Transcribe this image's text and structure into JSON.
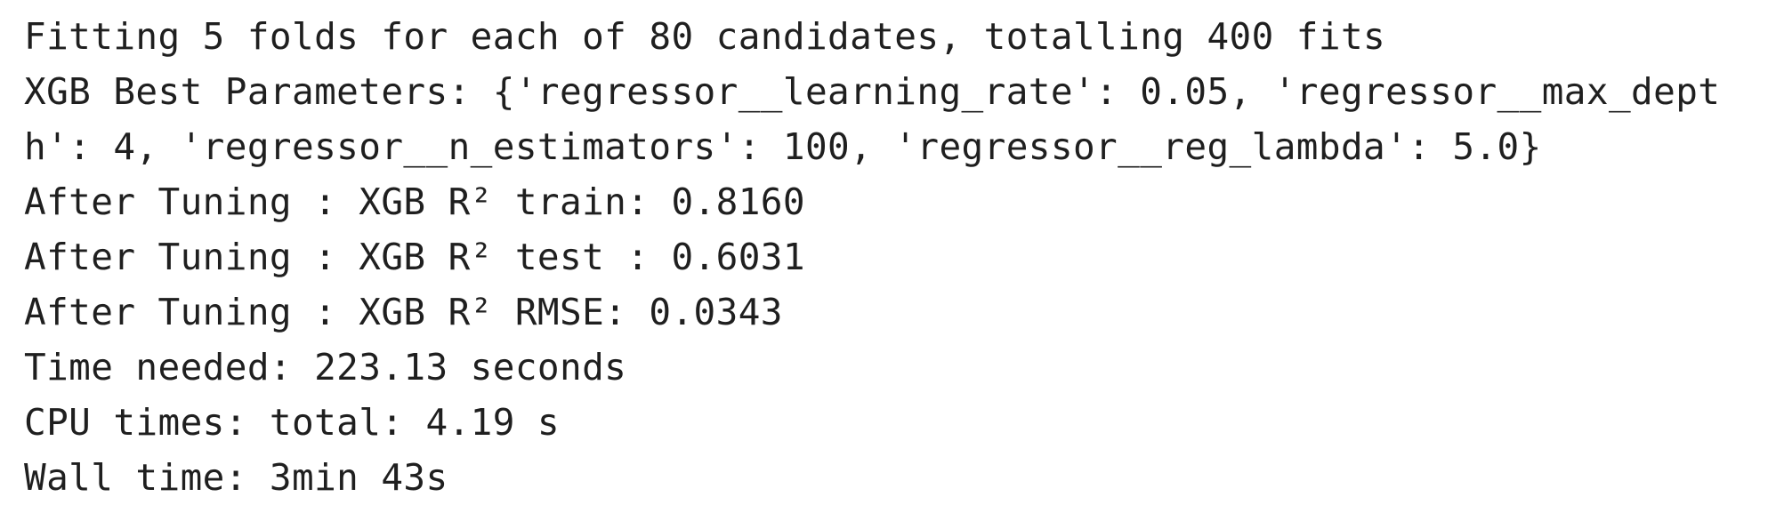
{
  "cell_output": {
    "lines": [
      "Fitting 5 folds for each of 80 candidates, totalling 400 fits",
      "XGB Best Parameters: {'regressor__learning_rate': 0.05, 'regressor__max_dept",
      "h': 4, 'regressor__n_estimators': 100, 'regressor__reg_lambda': 5.0}",
      "After Tuning : XGB R² train: 0.8160",
      "After Tuning : XGB R² test : 0.6031",
      "After Tuning : XGB R² RMSE: 0.0343",
      "Time needed: 223.13 seconds",
      "CPU times: total: 4.19 s",
      "Wall time: 3min 43s"
    ]
  }
}
